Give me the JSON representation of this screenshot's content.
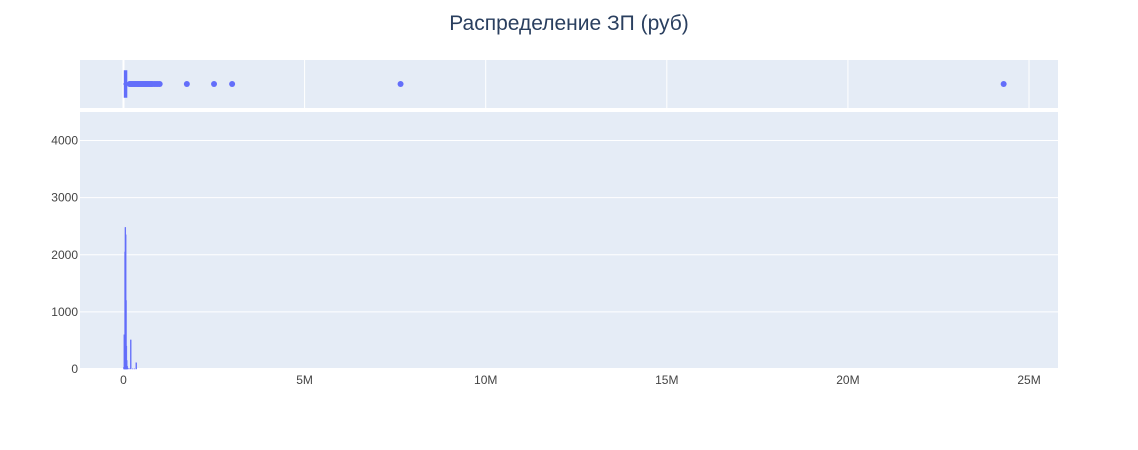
{
  "chart_data": {
    "type": "histogram",
    "title": "Распределение ЗП (руб)",
    "xlabel": "",
    "ylabel": "",
    "xlim": [
      -1200000,
      25800000
    ],
    "ylim": [
      0,
      4500
    ],
    "grid": true,
    "legend": "none",
    "x_ticks": [
      {
        "value": 0,
        "label": "0"
      },
      {
        "value": 5000000,
        "label": "5M"
      },
      {
        "value": 10000000,
        "label": "10M"
      },
      {
        "value": 15000000,
        "label": "15M"
      },
      {
        "value": 20000000,
        "label": "20M"
      },
      {
        "value": 25000000,
        "label": "25M"
      }
    ],
    "y_ticks": [
      {
        "value": 0,
        "label": "0"
      },
      {
        "value": 1000,
        "label": "1000"
      },
      {
        "value": 2000,
        "label": "2000"
      },
      {
        "value": 3000,
        "label": "3000"
      },
      {
        "value": 4000,
        "label": "4000"
      }
    ],
    "histogram_bins": [
      {
        "x0": 0,
        "x1": 10000,
        "count": 30
      },
      {
        "x0": 10000,
        "x1": 20000,
        "count": 600
      },
      {
        "x0": 20000,
        "x1": 30000,
        "count": 580
      },
      {
        "x0": 30000,
        "x1": 40000,
        "count": 2050
      },
      {
        "x0": 40000,
        "x1": 50000,
        "count": 2480
      },
      {
        "x0": 50000,
        "x1": 60000,
        "count": 2350
      },
      {
        "x0": 60000,
        "x1": 70000,
        "count": 1200
      },
      {
        "x0": 70000,
        "x1": 80000,
        "count": 400
      },
      {
        "x0": 80000,
        "x1": 90000,
        "count": 150
      },
      {
        "x0": 90000,
        "x1": 100000,
        "count": 50
      },
      {
        "x0": 100000,
        "x1": 110000,
        "count": 20
      },
      {
        "x0": 140000,
        "x1": 150000,
        "count": 10
      },
      {
        "x0": 190000,
        "x1": 200000,
        "count": 510
      },
      {
        "x0": 240000,
        "x1": 250000,
        "count": 5
      },
      {
        "x0": 290000,
        "x1": 300000,
        "count": 5
      },
      {
        "x0": 340000,
        "x1": 350000,
        "count": 110
      }
    ],
    "box": {
      "q1": 30000,
      "median": 50000,
      "q3": 80000,
      "whisker_low": 0,
      "whisker_high": 150000
    },
    "outliers": [
      170000,
      200000,
      230000,
      260000,
      290000,
      320000,
      350000,
      380000,
      410000,
      440000,
      470000,
      500000,
      530000,
      560000,
      590000,
      620000,
      650000,
      680000,
      710000,
      740000,
      770000,
      800000,
      850000,
      900000,
      950000,
      1000000,
      1750000,
      2500000,
      3000000,
      7650000,
      24300000
    ],
    "colors": {
      "trace": "#636efa",
      "plot_bg": "#e5ecf6",
      "grid": "#ffffff",
      "title": "#2a3f5f",
      "tick": "#444444"
    }
  }
}
